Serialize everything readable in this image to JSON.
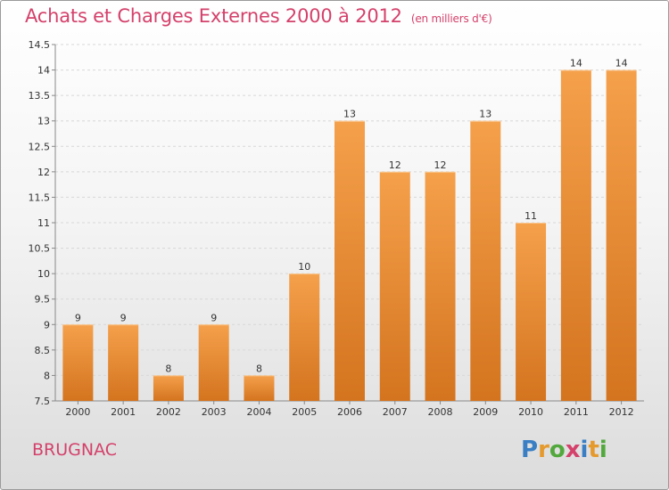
{
  "title": "Achats et Charges Externes 2000 à 2012",
  "unit": "(en milliers d'€)",
  "location": "BRUGNAC",
  "brand": {
    "letters": [
      "P",
      "r",
      "o",
      "x",
      "i",
      "t",
      "i"
    ],
    "colors": [
      "#3a7fc4",
      "#e59a2e",
      "#52a83c",
      "#d4416b",
      "#3a7fc4",
      "#e59a2e",
      "#52a83c"
    ]
  },
  "colors": {
    "bar_top": "#f5a04b",
    "bar_bottom": "#d4741f",
    "title": "#d4416b"
  },
  "chart_data": {
    "type": "bar",
    "categories": [
      "2000",
      "2001",
      "2002",
      "2003",
      "2004",
      "2005",
      "2006",
      "2007",
      "2008",
      "2009",
      "2010",
      "2011",
      "2012"
    ],
    "values": [
      9,
      9,
      8,
      9,
      8,
      10,
      13,
      12,
      12,
      13,
      11,
      14,
      14
    ],
    "value_labels": [
      "9",
      "9",
      "8",
      "9",
      "8",
      "10",
      "13",
      "12",
      "12",
      "13",
      "11",
      "14",
      "14"
    ],
    "ylim": [
      7.5,
      14.5
    ],
    "yticks": [
      7.5,
      8,
      8.5,
      9,
      9.5,
      10,
      10.5,
      11,
      11.5,
      12,
      12.5,
      13,
      13.5,
      14,
      14.5
    ],
    "ytick_labels": [
      "7.5",
      "8",
      "8.5",
      "9",
      "9.5",
      "10",
      "10.5",
      "11",
      "11.5",
      "12",
      "12.5",
      "13",
      "13.5",
      "14",
      "14.5"
    ],
    "grid": true
  }
}
